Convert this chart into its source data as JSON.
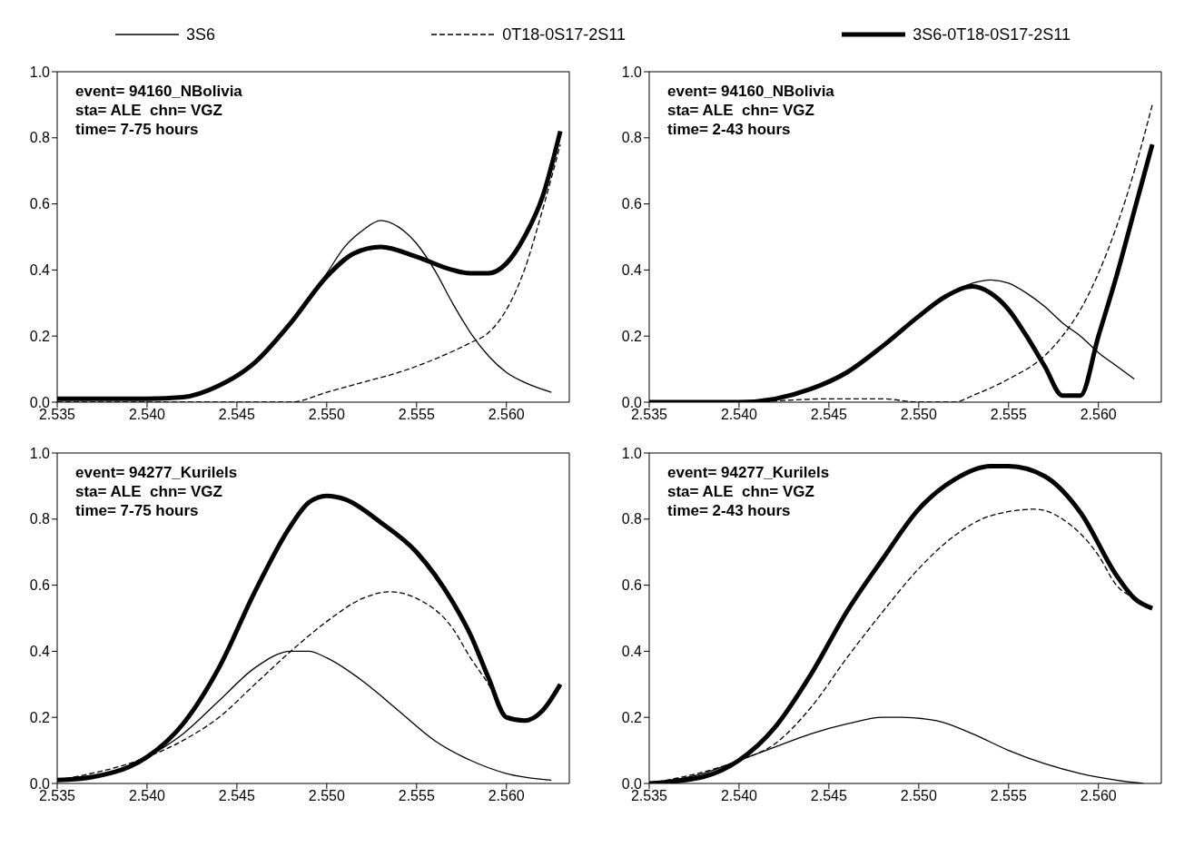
{
  "chart_data": [
    {
      "type": "line",
      "legend": "top",
      "annotations": [
        "event= 94160_NBolivia",
        "sta= ALE  chn= VGZ",
        "time= 7-75 hours"
      ],
      "xlim": [
        2.535,
        2.5635
      ],
      "ylim": [
        0,
        1
      ],
      "xticks": [
        {
          "value": 2.535,
          "label": "2.535"
        },
        {
          "value": 2.54,
          "label": "2.540"
        },
        {
          "value": 2.545,
          "label": "2.545"
        },
        {
          "value": 2.55,
          "label": "2.550"
        },
        {
          "value": 2.555,
          "label": "2.555"
        },
        {
          "value": 2.56,
          "label": "2.560"
        }
      ],
      "yticks": [
        {
          "value": 0,
          "label": "0.0"
        },
        {
          "value": 0.2,
          "label": "0.2"
        },
        {
          "value": 0.4,
          "label": "0.4"
        },
        {
          "value": 0.6,
          "label": "0.6"
        },
        {
          "value": 0.8,
          "label": "0.8"
        },
        {
          "value": 1,
          "label": "1.0"
        }
      ],
      "series": [
        {
          "name": "3S6",
          "color": "#000000",
          "line_style": "solid",
          "x": [
            2.535,
            2.54,
            2.542,
            2.544,
            2.546,
            2.548,
            2.55,
            2.551,
            2.552,
            2.553,
            2.554,
            2.555,
            2.556,
            2.557,
            2.558,
            2.559,
            2.56,
            2.561,
            2.5625
          ],
          "values": [
            0.01,
            0.01,
            0.015,
            0.05,
            0.12,
            0.24,
            0.39,
            0.47,
            0.52,
            0.55,
            0.53,
            0.48,
            0.4,
            0.3,
            0.21,
            0.14,
            0.09,
            0.06,
            0.03
          ]
        },
        {
          "name": "0T18-0S17-2S11",
          "color": "#000000",
          "line_style": "dashed",
          "x": [
            2.535,
            2.54,
            2.545,
            2.548,
            2.55,
            2.552,
            2.554,
            2.556,
            2.558,
            2.559,
            2.56,
            2.561,
            2.562,
            2.563
          ],
          "values": [
            0,
            0,
            0,
            0,
            0.03,
            0.06,
            0.09,
            0.13,
            0.18,
            0.21,
            0.28,
            0.4,
            0.58,
            0.78
          ]
        },
        {
          "name": "3S6-0T18-0S17-2S11",
          "color": "#000000",
          "line_style": "solid",
          "x": [
            2.535,
            2.54,
            2.542,
            2.544,
            2.546,
            2.548,
            2.55,
            2.5515,
            2.553,
            2.555,
            2.557,
            2.558,
            2.559,
            2.56,
            2.561,
            2.562,
            2.563
          ],
          "values": [
            0.01,
            0.01,
            0.015,
            0.05,
            0.12,
            0.24,
            0.38,
            0.45,
            0.47,
            0.44,
            0.4,
            0.39,
            0.39,
            0.42,
            0.5,
            0.62,
            0.82
          ]
        }
      ]
    },
    {
      "type": "line",
      "annotations": [
        "event= 94160_NBolivia",
        "sta= ALE  chn= VGZ",
        "time= 2-43 hours"
      ],
      "xlim": [
        2.535,
        2.5635
      ],
      "ylim": [
        0,
        1
      ],
      "xticks": [
        {
          "value": 2.535,
          "label": "2.535"
        },
        {
          "value": 2.54,
          "label": "2.540"
        },
        {
          "value": 2.545,
          "label": "2.545"
        },
        {
          "value": 2.55,
          "label": "2.550"
        },
        {
          "value": 2.555,
          "label": "2.555"
        },
        {
          "value": 2.56,
          "label": "2.560"
        }
      ],
      "yticks": [
        {
          "value": 0,
          "label": "0.0"
        },
        {
          "value": 0.2,
          "label": "0.2"
        },
        {
          "value": 0.4,
          "label": "0.4"
        },
        {
          "value": 0.6,
          "label": "0.6"
        },
        {
          "value": 0.8,
          "label": "0.8"
        },
        {
          "value": 1,
          "label": "1.0"
        }
      ],
      "series": [
        {
          "color": "#000000",
          "line_style": "solid",
          "x": [
            2.535,
            2.54,
            2.542,
            2.544,
            2.546,
            2.548,
            2.55,
            2.5515,
            2.553,
            2.554,
            2.555,
            2.556,
            2.557,
            2.558,
            2.559,
            2.56,
            2.561,
            2.562
          ],
          "values": [
            0,
            0,
            0.01,
            0.04,
            0.09,
            0.17,
            0.26,
            0.32,
            0.36,
            0.37,
            0.36,
            0.33,
            0.29,
            0.24,
            0.2,
            0.15,
            0.11,
            0.07
          ]
        },
        {
          "color": "#000000",
          "line_style": "dashed",
          "x": [
            2.535,
            2.54,
            2.545,
            2.548,
            2.55,
            2.552,
            2.553,
            2.555,
            2.557,
            2.558,
            2.559,
            2.56,
            2.561,
            2.562,
            2.563
          ],
          "values": [
            0,
            0,
            0.01,
            0.01,
            0,
            0,
            0.02,
            0.07,
            0.14,
            0.2,
            0.28,
            0.39,
            0.53,
            0.7,
            0.9
          ]
        },
        {
          "color": "#000000",
          "line_style": "solid",
          "x": [
            2.535,
            2.54,
            2.542,
            2.544,
            2.546,
            2.548,
            2.55,
            2.5515,
            2.553,
            2.554,
            2.555,
            2.556,
            2.557,
            2.558,
            2.559,
            2.56,
            2.561,
            2.562,
            2.563
          ],
          "values": [
            0,
            0,
            0.01,
            0.04,
            0.09,
            0.17,
            0.26,
            0.32,
            0.35,
            0.33,
            0.28,
            0.2,
            0.11,
            0.02,
            0.02,
            0.2,
            0.38,
            0.58,
            0.78
          ]
        }
      ]
    },
    {
      "type": "line",
      "annotations": [
        "event= 94277_Kurilels",
        "sta= ALE  chn= VGZ",
        "time= 7-75 hours"
      ],
      "xlim": [
        2.535,
        2.5635
      ],
      "ylim": [
        0,
        1
      ],
      "xticks": [
        {
          "value": 2.535,
          "label": "2.535"
        },
        {
          "value": 2.54,
          "label": "2.540"
        },
        {
          "value": 2.545,
          "label": "2.545"
        },
        {
          "value": 2.55,
          "label": "2.550"
        },
        {
          "value": 2.555,
          "label": "2.555"
        },
        {
          "value": 2.56,
          "label": "2.560"
        }
      ],
      "yticks": [
        {
          "value": 0,
          "label": "0.0"
        },
        {
          "value": 0.2,
          "label": "0.2"
        },
        {
          "value": 0.4,
          "label": "0.4"
        },
        {
          "value": 0.6,
          "label": "0.6"
        },
        {
          "value": 0.8,
          "label": "0.8"
        },
        {
          "value": 1,
          "label": "1.0"
        }
      ],
      "series": [
        {
          "color": "#000000",
          "line_style": "solid",
          "x": [
            2.535,
            2.538,
            2.54,
            2.542,
            2.544,
            2.546,
            2.548,
            2.549,
            2.55,
            2.552,
            2.554,
            2.556,
            2.558,
            2.56,
            2.5625
          ],
          "values": [
            0.01,
            0.03,
            0.08,
            0.15,
            0.25,
            0.35,
            0.4,
            0.4,
            0.38,
            0.31,
            0.22,
            0.13,
            0.07,
            0.03,
            0.01
          ]
        },
        {
          "color": "#000000",
          "line_style": "dashed",
          "x": [
            2.535,
            2.54,
            2.542,
            2.544,
            2.546,
            2.548,
            2.55,
            2.552,
            2.5535,
            2.555,
            2.557,
            2.558,
            2.559,
            2.56
          ],
          "values": [
            0.01,
            0.08,
            0.13,
            0.2,
            0.3,
            0.4,
            0.49,
            0.56,
            0.58,
            0.56,
            0.47,
            0.38,
            0.3,
            0.2
          ]
        },
        {
          "color": "#000000",
          "line_style": "solid",
          "x": [
            2.535,
            2.537,
            2.539,
            2.54,
            2.542,
            2.544,
            2.546,
            2.548,
            2.549,
            2.55,
            2.551,
            2.553,
            2.555,
            2.557,
            2.558,
            2.559,
            2.56,
            2.561,
            2.562,
            2.563
          ],
          "values": [
            0.01,
            0.02,
            0.05,
            0.08,
            0.18,
            0.35,
            0.58,
            0.78,
            0.85,
            0.87,
            0.86,
            0.79,
            0.7,
            0.55,
            0.45,
            0.32,
            0.2,
            0.19,
            0.22,
            0.3
          ]
        }
      ]
    },
    {
      "type": "line",
      "annotations": [
        "event= 94277_Kurilels",
        "sta= ALE  chn= VGZ",
        "time= 2-43 hours"
      ],
      "xlim": [
        2.535,
        2.5635
      ],
      "ylim": [
        0,
        1
      ],
      "xticks": [
        {
          "value": 2.535,
          "label": "2.535"
        },
        {
          "value": 2.54,
          "label": "2.540"
        },
        {
          "value": 2.545,
          "label": "2.545"
        },
        {
          "value": 2.55,
          "label": "2.550"
        },
        {
          "value": 2.555,
          "label": "2.555"
        },
        {
          "value": 2.56,
          "label": "2.560"
        }
      ],
      "yticks": [
        {
          "value": 0,
          "label": "0.0"
        },
        {
          "value": 0.2,
          "label": "0.2"
        },
        {
          "value": 0.4,
          "label": "0.4"
        },
        {
          "value": 0.6,
          "label": "0.6"
        },
        {
          "value": 0.8,
          "label": "0.8"
        },
        {
          "value": 1,
          "label": "1.0"
        }
      ],
      "series": [
        {
          "color": "#000000",
          "line_style": "solid",
          "x": [
            2.535,
            2.538,
            2.54,
            2.542,
            2.544,
            2.546,
            2.548,
            2.549,
            2.551,
            2.553,
            2.555,
            2.557,
            2.559,
            2.561,
            2.5625
          ],
          "values": [
            0,
            0.03,
            0.07,
            0.11,
            0.15,
            0.18,
            0.2,
            0.2,
            0.19,
            0.15,
            0.1,
            0.06,
            0.03,
            0.01,
            0
          ]
        },
        {
          "color": "#000000",
          "line_style": "dashed",
          "x": [
            2.535,
            2.54,
            2.542,
            2.544,
            2.546,
            2.548,
            2.55,
            2.552,
            2.554,
            2.5565,
            2.558,
            2.56,
            2.561,
            2.562,
            2.563
          ],
          "values": [
            0,
            0.07,
            0.12,
            0.23,
            0.38,
            0.52,
            0.65,
            0.75,
            0.81,
            0.83,
            0.8,
            0.69,
            0.6,
            0.56,
            0.53
          ]
        },
        {
          "color": "#000000",
          "line_style": "solid",
          "x": [
            2.535,
            2.538,
            2.54,
            2.542,
            2.544,
            2.546,
            2.548,
            2.55,
            2.552,
            2.554,
            2.555,
            2.557,
            2.559,
            2.561,
            2.562,
            2.563
          ],
          "values": [
            0,
            0.02,
            0.07,
            0.17,
            0.33,
            0.52,
            0.68,
            0.83,
            0.92,
            0.96,
            0.96,
            0.93,
            0.82,
            0.63,
            0.56,
            0.53
          ]
        }
      ]
    }
  ]
}
